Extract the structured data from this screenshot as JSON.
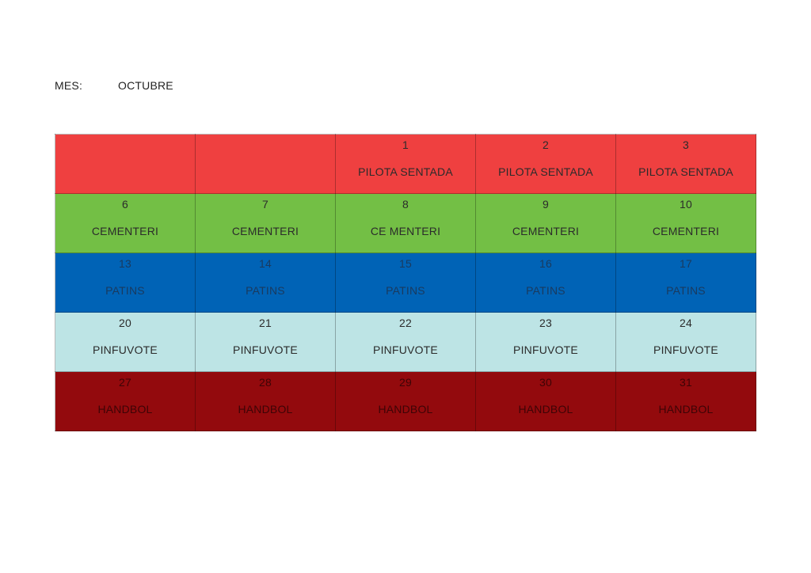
{
  "header": {
    "month_label": "MES:",
    "month_value": "OCTUBRE"
  },
  "colors": {
    "red": "#ef4040",
    "green": "#73bf45",
    "blue": "#0063b6",
    "light_blue": "#bde4e5",
    "dark_red": "#930a0d"
  },
  "rows": [
    {
      "color": "#ef4040",
      "text_color": "#2b2b2b",
      "cells": [
        {
          "day": "",
          "activity": ""
        },
        {
          "day": "",
          "activity": ""
        },
        {
          "day": "1",
          "activity": "PILOTA SENTADA"
        },
        {
          "day": "2",
          "activity": "PILOTA SENTADA"
        },
        {
          "day": "3",
          "activity": "PILOTA SENTADA"
        }
      ]
    },
    {
      "color": "#73bf45",
      "text_color": "#2b2b2b",
      "cells": [
        {
          "day": "6",
          "activity": "CEMENTERI"
        },
        {
          "day": "7",
          "activity": "CEMENTERI"
        },
        {
          "day": "8",
          "activity": "CE MENTERI"
        },
        {
          "day": "9",
          "activity": "CEMENTERI"
        },
        {
          "day": "10",
          "activity": "CEMENTERI"
        }
      ]
    },
    {
      "color": "#0063b6",
      "text_color": "#1a3a5e",
      "cells": [
        {
          "day": "13",
          "activity": "PATINS"
        },
        {
          "day": "14",
          "activity": "PATINS"
        },
        {
          "day": "15",
          "activity": "PATINS"
        },
        {
          "day": "16",
          "activity": "PATINS"
        },
        {
          "day": "17",
          "activity": "PATINS"
        }
      ]
    },
    {
      "color": "#bde4e5",
      "text_color": "#2b2b2b",
      "cells": [
        {
          "day": "20",
          "activity": "PINFUVOTE"
        },
        {
          "day": "21",
          "activity": "PINFUVOTE"
        },
        {
          "day": "22",
          "activity": "PINFUVOTE"
        },
        {
          "day": "23",
          "activity": "PINFUVOTE"
        },
        {
          "day": "24",
          "activity": "PINFUVOTE"
        }
      ]
    },
    {
      "color": "#930a0d",
      "text_color": "#3d0406",
      "cells": [
        {
          "day": "27",
          "activity": "HANDBOL"
        },
        {
          "day": "28",
          "activity": "HANDBOL"
        },
        {
          "day": "29",
          "activity": "HANDBOL"
        },
        {
          "day": "30",
          "activity": "HANDBOL"
        },
        {
          "day": "31",
          "activity": "HANDBOL"
        }
      ]
    }
  ]
}
